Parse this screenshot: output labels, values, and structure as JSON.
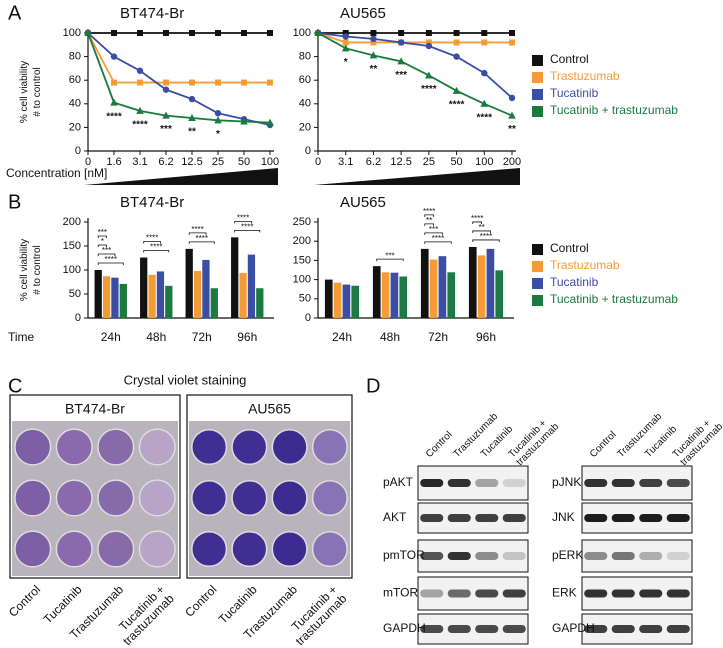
{
  "chart_data": [
    {
      "type": "line",
      "panel_label": "A",
      "title": "BT474-Br",
      "y_label": [
        "% cell viability",
        "# to control"
      ],
      "x_label": "Concentration [nM]",
      "categories": [
        "0",
        "1.6",
        "3.1",
        "6.2",
        "12.5",
        "25",
        "50",
        "100"
      ],
      "ylim": [
        0,
        100
      ],
      "yticks": [
        0,
        20,
        40,
        60,
        80,
        100
      ],
      "series": [
        {
          "name": "Control",
          "color": "#111111",
          "marker": "square",
          "values": [
            100,
            100,
            100,
            100,
            100,
            100,
            100,
            100
          ]
        },
        {
          "name": "Trastuzumab",
          "color": "#f59b36",
          "marker": "square",
          "values": [
            100,
            58,
            58,
            58,
            58,
            58,
            58,
            58
          ]
        },
        {
          "name": "Tucatinib",
          "color": "#3a4ea6",
          "marker": "circle",
          "values": [
            100,
            80,
            68,
            52,
            44,
            32,
            27,
            22
          ]
        },
        {
          "name": "Tucatinib + trastuzumab",
          "color": "#1b7a3e",
          "marker": "triangle",
          "values": [
            100,
            41,
            34,
            30,
            28,
            26,
            25,
            24
          ],
          "significance": [
            null,
            "****",
            "****",
            "***",
            "**",
            "*",
            null,
            null
          ]
        }
      ]
    },
    {
      "type": "line",
      "title": "AU565",
      "legend": "right",
      "categories": [
        "0",
        "3.1",
        "6.2",
        "12.5",
        "25",
        "50",
        "100",
        "200"
      ],
      "ylim": [
        0,
        100
      ],
      "yticks": [
        0,
        20,
        40,
        60,
        80,
        100
      ],
      "series": [
        {
          "name": "Control",
          "color": "#111111",
          "marker": "square",
          "values": [
            100,
            100,
            100,
            100,
            100,
            100,
            100,
            100
          ]
        },
        {
          "name": "Trastuzumab",
          "color": "#f59b36",
          "marker": "square",
          "values": [
            100,
            92,
            92,
            92,
            92,
            92,
            92,
            92
          ]
        },
        {
          "name": "Tucatinib",
          "color": "#3a4ea6",
          "marker": "circle",
          "values": [
            100,
            97,
            95,
            92,
            89,
            80,
            66,
            45
          ]
        },
        {
          "name": "Tucatinib + trastuzumab",
          "color": "#1b7a3e",
          "marker": "triangle",
          "values": [
            100,
            87,
            81,
            76,
            64,
            51,
            40,
            30
          ],
          "significance": [
            null,
            "*",
            "**",
            "***",
            "****",
            "****",
            "****",
            "**"
          ]
        }
      ]
    },
    {
      "type": "bar",
      "panel_label": "B",
      "title": "BT474-Br",
      "y_label": [
        "% cell viability",
        "# to control"
      ],
      "x_label": "Time",
      "categories": [
        "24h",
        "48h",
        "72h",
        "96h"
      ],
      "ylim": [
        0,
        200
      ],
      "yticks": [
        0,
        50,
        100,
        150,
        200
      ],
      "series": [
        {
          "name": "Control",
          "color": "#111111",
          "values": [
            100,
            126,
            144,
            168
          ]
        },
        {
          "name": "Trastuzumab",
          "color": "#f59b36",
          "values": [
            87,
            90,
            98,
            94
          ]
        },
        {
          "name": "Tucatinib",
          "color": "#3a4ea6",
          "values": [
            84,
            97,
            121,
            132
          ]
        },
        {
          "name": "Tucatinib + trastuzumab",
          "color": "#1b7a3e",
          "values": [
            71,
            67,
            62,
            62
          ]
        }
      ],
      "significance": [
        [
          "****",
          "***",
          "*",
          "***"
        ],
        [
          "****",
          "****"
        ],
        [
          "****",
          "****"
        ],
        [
          "****",
          "****"
        ]
      ]
    },
    {
      "type": "bar",
      "title": "AU565",
      "legend": "right",
      "categories": [
        "24h",
        "48h",
        "72h",
        "96h"
      ],
      "ylim": [
        0,
        250
      ],
      "yticks": [
        0,
        50,
        100,
        150,
        200,
        250
      ],
      "series": [
        {
          "name": "Control",
          "color": "#111111",
          "values": [
            100,
            135,
            180,
            185
          ]
        },
        {
          "name": "Trastuzumab",
          "color": "#f59b36",
          "values": [
            92,
            119,
            152,
            163
          ]
        },
        {
          "name": "Tucatinib",
          "color": "#3a4ea6",
          "values": [
            87,
            118,
            161,
            180
          ]
        },
        {
          "name": "Tucatinib + trastuzumab",
          "color": "#1b7a3e",
          "values": [
            84,
            108,
            119,
            124
          ]
        }
      ],
      "significance": [
        [],
        [
          "***"
        ],
        [
          "****",
          "***",
          "**",
          "****"
        ],
        [
          "****",
          "**",
          "****"
        ]
      ]
    }
  ],
  "crystal_violet": {
    "label": "C",
    "title": "Crystal violet staining",
    "plates": [
      {
        "name": "BT474-Br",
        "lanes": [
          "Control",
          "Tucatinib",
          "Trastuzumab",
          [
            "Tucatinib +",
            "trastuzumab"
          ]
        ]
      },
      {
        "name": "AU565",
        "lanes": [
          "Control",
          "Tucatinib",
          "Trastuzumab",
          [
            "Tucatinib +",
            "trastuzumab"
          ]
        ]
      }
    ]
  },
  "western_blot": {
    "label": "D",
    "groups": [
      {
        "lanes": [
          "Control",
          "Trastuzumab",
          "Tucatinib",
          [
            "Tucatinib +",
            "trastuzumab"
          ]
        ],
        "rows": [
          "pAKT",
          "AKT",
          "pmTOR",
          "mTOR",
          "GAPDH"
        ]
      },
      {
        "lanes": [
          "Control",
          "Trastuzumab",
          "Tucatinib",
          [
            "Tucatinib +",
            "trastuzumab"
          ]
        ],
        "rows": [
          "pJNK",
          "JNK",
          "pERK",
          "ERK",
          "GAPDH"
        ]
      }
    ]
  }
}
